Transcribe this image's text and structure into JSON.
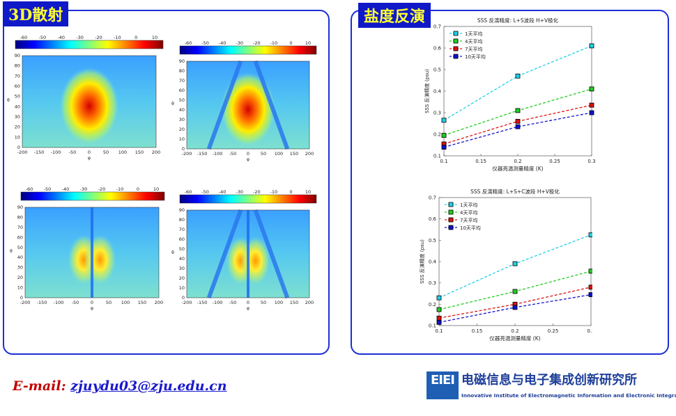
{
  "left_panel": {
    "tag": "3D散射",
    "colorbar_ticks": [
      "-60",
      "-50",
      "-40",
      "-30",
      "-20",
      "-10",
      "0",
      "10"
    ],
    "x_ticks": [
      "-200",
      "-150",
      "-100",
      "-50",
      "0",
      "50",
      "100",
      "150",
      "200"
    ],
    "y_ticks": [
      "0",
      "10",
      "20",
      "30",
      "40",
      "50",
      "60",
      "70",
      "80",
      "90"
    ],
    "xlabel": "φ",
    "ylabel": "θ"
  },
  "right_panel": {
    "tag": "盐度反演",
    "x_ticks": [
      "0.1",
      "0.15",
      "0.2",
      "0.25",
      "0.3"
    ],
    "y_ticks": [
      "0.1",
      "0.2",
      "0.3",
      "0.4",
      "0.5",
      "0.6",
      "0.7"
    ]
  },
  "chart_data": [
    {
      "type": "line",
      "title": "SSS 反演精度: L+S波段 H+V极化",
      "xlabel": "仪器亮温测量精度 (K)",
      "ylabel": "SSS 反演精度 (psu)",
      "xlim": [
        0.1,
        0.3
      ],
      "ylim": [
        0.1,
        0.7
      ],
      "x": [
        0.1,
        0.2,
        0.3
      ],
      "legend": "top-left",
      "series": [
        {
          "name": "1天平均",
          "color": "#22cfe6",
          "values": [
            0.265,
            0.47,
            0.61
          ]
        },
        {
          "name": "4天平均",
          "color": "#22cc22",
          "values": [
            0.195,
            0.31,
            0.41
          ]
        },
        {
          "name": "7天平均",
          "color": "#dd1111",
          "values": [
            0.155,
            0.26,
            0.335
          ]
        },
        {
          "name": "10天平均",
          "color": "#1111cc",
          "values": [
            0.14,
            0.235,
            0.3
          ]
        }
      ]
    },
    {
      "type": "line",
      "title": "SSS 反演精度: L+S+C波段 H+V极化",
      "xlabel": "仪器亮温测量精度 (K)",
      "ylabel": "SSS 反演精度 (psu)",
      "xlim": [
        0.1,
        0.3
      ],
      "ylim": [
        0.1,
        0.7
      ],
      "x": [
        0.1,
        0.2,
        0.3
      ],
      "legend": "top-left",
      "series": [
        {
          "name": "1天平均",
          "color": "#22cfe6",
          "values": [
            0.23,
            0.39,
            0.525
          ]
        },
        {
          "name": "4天平均",
          "color": "#22cc22",
          "values": [
            0.175,
            0.26,
            0.355
          ]
        },
        {
          "name": "7天平均",
          "color": "#dd1111",
          "values": [
            0.135,
            0.2,
            0.28
          ]
        },
        {
          "name": "10天平均",
          "color": "#1111cc",
          "values": [
            0.115,
            0.185,
            0.245
          ]
        }
      ]
    }
  ],
  "footer": {
    "email_label": "E-mail:",
    "email": "zjuydu03@zju.edu.cn",
    "logo_mark": "EIEI",
    "logo_cn": "电磁信息与电子集成创新研究所",
    "logo_en": "Innovative Institute of Electromagnetic Information and Electronic Integration"
  }
}
